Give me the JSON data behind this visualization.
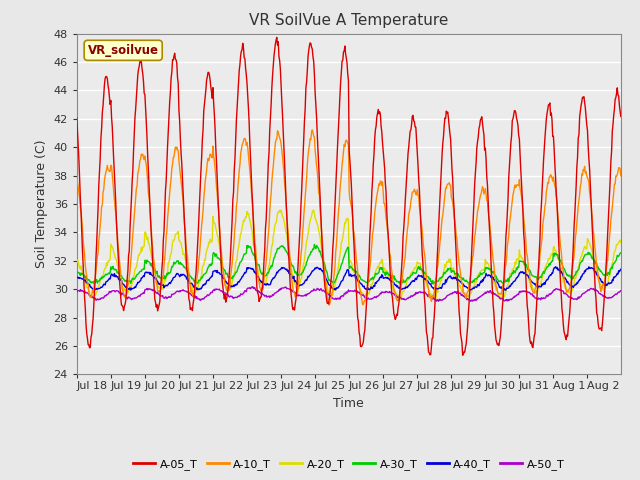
{
  "title": "VR SoilVue A Temperature",
  "ylabel": "Soil Temperature (C)",
  "xlabel": "Time",
  "annotation": "VR_soilvue",
  "ylim": [
    24,
    48
  ],
  "yticks": [
    24,
    26,
    28,
    30,
    32,
    34,
    36,
    38,
    40,
    42,
    44,
    46,
    48
  ],
  "series_colors": {
    "A-05_T": "#dd0000",
    "A-10_T": "#ff8800",
    "A-20_T": "#dddd00",
    "A-30_T": "#00cc00",
    "A-40_T": "#0000dd",
    "A-50_T": "#aa00cc"
  },
  "background_color": "#e8e8e8",
  "plot_bg_color": "#ebebeb",
  "grid_color": "#ffffff",
  "n_days": 16,
  "tick_labels": [
    "Jul 18",
    "Jul 19",
    "Jul 20",
    "Jul 21",
    "Jul 22",
    "Jul 23",
    "Jul 24",
    "Jul 25",
    "Jul 26",
    "Jul 27",
    "Jul 28",
    "Jul 29",
    "Jul 30",
    "Jul 31",
    "Aug 1",
    "Aug 2"
  ],
  "peaks_05": [
    45.0,
    46.0,
    46.5,
    45.2,
    47.0,
    47.5,
    47.3,
    46.8,
    42.5,
    42.0,
    42.5,
    42.0,
    42.5,
    43.0,
    43.5,
    43.8
  ],
  "troughs_05": [
    26.0,
    28.5,
    28.5,
    28.5,
    29.0,
    29.2,
    28.5,
    29.0,
    26.0,
    28.0,
    25.5,
    25.5,
    26.0,
    26.0,
    26.5,
    27.0
  ],
  "peaks_10": [
    38.5,
    39.5,
    40.0,
    39.5,
    40.5,
    41.0,
    41.0,
    40.5,
    37.5,
    37.0,
    37.5,
    37.0,
    37.5,
    38.0,
    38.5,
    38.5
  ],
  "troughs_10": [
    29.5,
    29.5,
    29.8,
    29.5,
    29.8,
    30.0,
    29.5,
    29.0,
    29.0,
    29.2,
    29.3,
    29.5,
    29.5,
    29.8,
    29.8,
    30.0
  ],
  "peaks_20": [
    32.0,
    33.0,
    34.0,
    33.5,
    35.0,
    35.5,
    35.5,
    35.0,
    32.0,
    31.5,
    32.0,
    31.5,
    32.0,
    32.5,
    33.0,
    33.5
  ],
  "troughs_20": [
    29.5,
    29.8,
    30.0,
    29.8,
    30.0,
    30.2,
    30.0,
    29.5,
    29.5,
    29.5,
    29.5,
    29.5,
    29.5,
    29.8,
    29.8,
    30.0
  ],
  "peaks_30": [
    31.2,
    31.5,
    32.0,
    31.8,
    32.5,
    33.0,
    33.0,
    33.0,
    31.5,
    31.2,
    31.5,
    31.2,
    31.5,
    32.0,
    32.5,
    32.5
  ],
  "troughs_30": [
    30.5,
    30.5,
    30.8,
    30.5,
    30.8,
    31.0,
    31.0,
    30.5,
    30.5,
    30.5,
    30.5,
    30.5,
    30.5,
    30.8,
    30.8,
    31.0
  ],
  "peaks_40": [
    30.8,
    31.0,
    31.2,
    31.0,
    31.3,
    31.5,
    31.5,
    31.5,
    31.0,
    30.8,
    31.0,
    30.8,
    31.0,
    31.2,
    31.5,
    31.5
  ],
  "troughs_40": [
    30.0,
    30.0,
    30.2,
    30.0,
    30.2,
    30.3,
    30.3,
    30.0,
    30.0,
    30.0,
    30.0,
    30.0,
    30.0,
    30.2,
    30.2,
    30.3
  ],
  "peaks_50": [
    29.9,
    29.9,
    30.0,
    29.9,
    30.0,
    30.1,
    30.1,
    30.0,
    29.9,
    29.8,
    29.8,
    29.8,
    29.8,
    29.9,
    30.0,
    30.0
  ],
  "troughs_50": [
    29.3,
    29.3,
    29.4,
    29.3,
    29.4,
    29.5,
    29.5,
    29.3,
    29.3,
    29.3,
    29.2,
    29.2,
    29.2,
    29.3,
    29.3,
    29.4
  ]
}
